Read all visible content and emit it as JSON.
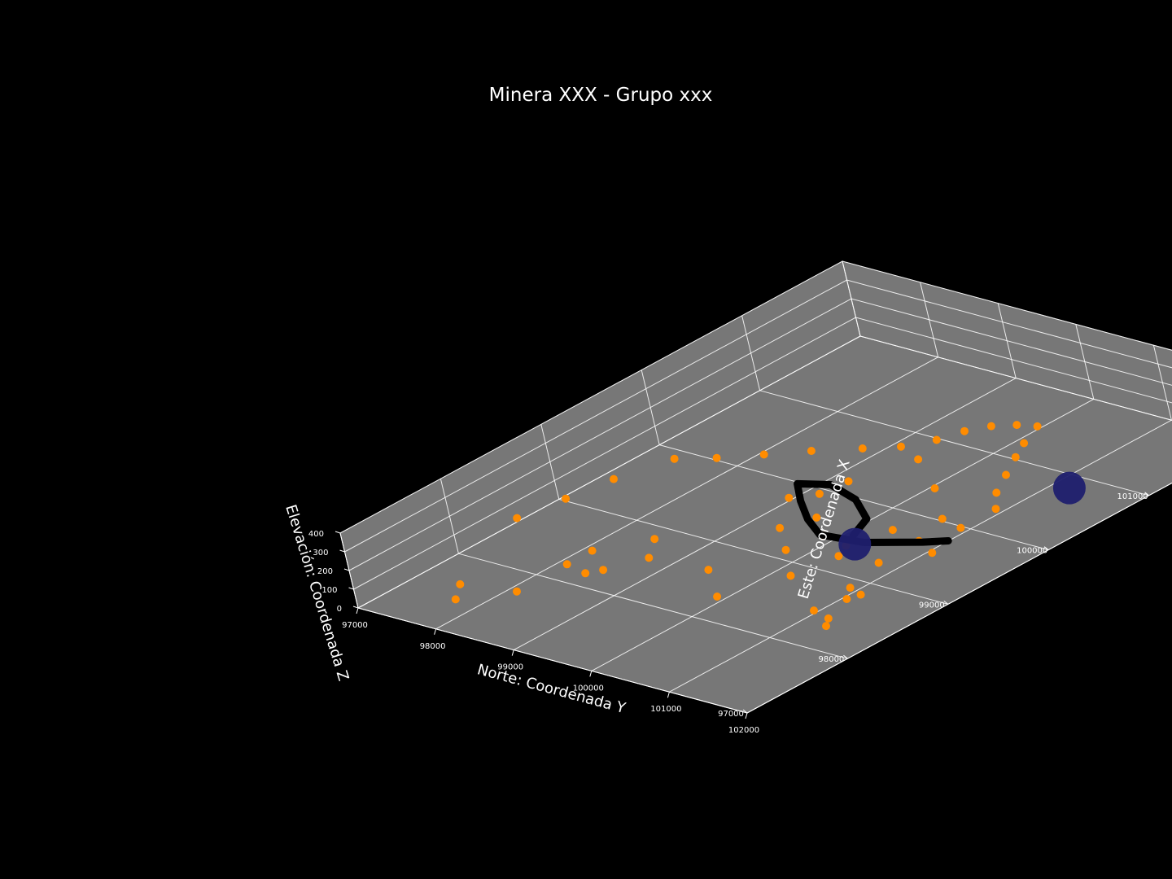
{
  "chart_data": {
    "type": "scatter",
    "title": "Minera XXX - Grupo xxx",
    "xlabel": "Este: Coordenada X",
    "ylabel": "Norte:  Coordenada Y",
    "zlabel": "Elevación: Coordenada Z",
    "x_ticks": [
      "97000",
      "98000",
      "99000",
      "100000",
      "101000",
      "102000"
    ],
    "y_ticks": [
      "97000",
      "98000",
      "99000",
      "100000",
      "101000",
      "102000"
    ],
    "z_ticks": [
      "0",
      "100",
      "200",
      "300",
      "400"
    ],
    "xlim": [
      97000,
      102000
    ],
    "ylim": [
      97000,
      102000
    ],
    "zlim": [
      0,
      400
    ],
    "grid": true,
    "colors": {
      "background": "#000000",
      "pane": "#777777",
      "grid": "#ffffff",
      "points": "#ff8c00",
      "path": "#000000",
      "markers": "#1f1f6e"
    },
    "series": [
      {
        "marker": "orange-points",
        "points": [
          [
            98500,
            97140,
            60
          ],
          [
            98900,
            97250,
            60
          ],
          [
            99300,
            97350,
            60
          ],
          [
            99750,
            97550,
            60
          ],
          [
            99900,
            97900,
            60
          ],
          [
            100100,
            98250,
            60
          ],
          [
            100300,
            98600,
            60
          ],
          [
            100500,
            99000,
            60
          ],
          [
            100650,
            99300,
            60
          ],
          [
            100850,
            99500,
            60
          ],
          [
            101050,
            99600,
            60
          ],
          [
            101200,
            99750,
            60
          ],
          [
            101300,
            99950,
            60
          ],
          [
            101350,
            100150,
            60
          ],
          [
            101100,
            100300,
            60
          ],
          [
            100900,
            100450,
            60
          ],
          [
            100650,
            100650,
            60
          ],
          [
            100400,
            100850,
            60
          ],
          [
            100200,
            101100,
            60
          ],
          [
            99800,
            99350,
            60
          ],
          [
            99500,
            99700,
            60
          ],
          [
            99300,
            100050,
            60
          ],
          [
            99600,
            100550,
            60
          ],
          [
            99850,
            101100,
            60
          ],
          [
            99650,
            99150,
            60
          ],
          [
            99250,
            99550,
            60
          ],
          [
            99000,
            99950,
            60
          ],
          [
            99250,
            100400,
            60
          ],
          [
            99550,
            100950,
            60
          ],
          [
            97300,
            97900,
            60
          ],
          [
            97600,
            98300,
            60
          ],
          [
            98100,
            98300,
            60
          ],
          [
            98150,
            98700,
            60
          ],
          [
            98450,
            98900,
            60
          ],
          [
            98700,
            98650,
            60
          ],
          [
            98500,
            99600,
            60
          ],
          [
            98200,
            100100,
            60
          ],
          [
            98700,
            100400,
            60
          ],
          [
            99100,
            100500,
            60
          ],
          [
            98700,
            101300,
            60
          ],
          [
            98200,
            101500,
            60
          ],
          [
            98350,
            101150,
            60
          ],
          [
            98750,
            101100,
            60
          ],
          [
            98300,
            101400,
            60
          ],
          [
            98600,
            101250,
            60
          ],
          [
            99900,
            100800,
            60
          ],
          [
            99150,
            100950,
            60
          ],
          [
            100250,
            100250,
            60
          ],
          [
            100550,
            99650,
            60
          ],
          [
            100050,
            99400,
            60
          ],
          [
            99450,
            101250,
            60
          ],
          [
            97500,
            97700,
            60
          ],
          [
            98050,
            98600,
            60
          ],
          [
            98350,
            98300,
            60
          ]
        ]
      },
      {
        "marker": "black-path",
        "points": [
          [
            99400,
            100300,
            60
          ],
          [
            99650,
            100150,
            60
          ],
          [
            99850,
            99750,
            60
          ],
          [
            99950,
            99300,
            60
          ],
          [
            99850,
            99000,
            60
          ],
          [
            99650,
            99300,
            60
          ],
          [
            99450,
            99650,
            60
          ],
          [
            99300,
            100000,
            60
          ],
          [
            99350,
            100500,
            60
          ],
          [
            99550,
            101000,
            60
          ],
          [
            99650,
            101200,
            60
          ]
        ]
      },
      {
        "marker": "navy-spheres",
        "points": [
          [
            99300,
            100450,
            60
          ],
          [
            100700,
            101400,
            60
          ]
        ]
      }
    ]
  }
}
